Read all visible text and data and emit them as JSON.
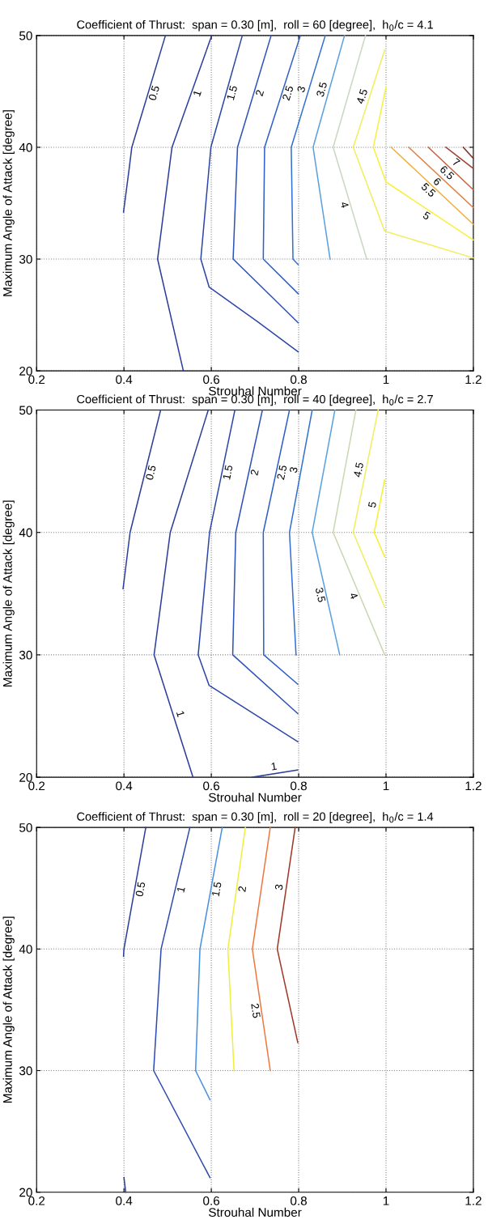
{
  "chart_data": [
    {
      "type": "line",
      "title": "Coefficient of Thrust:  span = 0.30 [m],  roll = 60 [degree],  h$_{0}$/c = 4.1",
      "xlabel": "Strouhal Number",
      "ylabel": "Maximum Angle of Attack [degree]",
      "xlim": [
        0.2,
        1.2
      ],
      "ylim": [
        20,
        50
      ],
      "xticks": [
        0.2,
        0.4,
        0.6,
        0.8,
        1,
        1.2
      ],
      "yticks": [
        20,
        30,
        40,
        50
      ],
      "grid": true,
      "marker": "none",
      "line_style": "solid",
      "series": [
        {
          "name": "0.5",
          "color": "#2b3f9a",
          "x": [
            0.399,
            0.412,
            0.418,
            0.495
          ],
          "values": [
            34.2,
            38.1,
            40,
            50
          ]
        },
        {
          "name": "1",
          "color": "#2b3f9a",
          "x": [
            0.601,
            0.51,
            0.477,
            0.536
          ],
          "values": [
            50,
            40,
            30,
            20
          ]
        },
        {
          "name": "1.5",
          "color": "#2c47a8",
          "x": [
            0.671,
            0.599,
            0.576,
            0.595,
            0.706,
            0.799
          ],
          "values": [
            50,
            40,
            30,
            27.5,
            24.4,
            21.7
          ]
        },
        {
          "name": "2",
          "color": "#2d52b8",
          "x": [
            0.737,
            0.66,
            0.65,
            0.799
          ],
          "values": [
            50,
            40,
            30,
            24.3
          ]
        },
        {
          "name": "2.5",
          "color": "#2f5fc6",
          "x": [
            0.804,
            0.722,
            0.719,
            0.799
          ],
          "values": [
            50,
            40,
            30,
            26.9
          ]
        },
        {
          "name": "3",
          "color": "#3270d4",
          "x": [
            0.861,
            0.783,
            0.787,
            0.799
          ],
          "values": [
            50,
            40,
            30,
            29.5
          ]
        },
        {
          "name": "3.5",
          "color": "#5aa0e0",
          "x": [
            0.905,
            0.833,
            0.872
          ],
          "values": [
            50,
            40,
            30
          ]
        },
        {
          "name": "4",
          "color": "#c8d8c0",
          "x": [
            0.953,
            0.879,
            0.956
          ],
          "values": [
            50,
            40,
            30
          ]
        },
        {
          "name": "4.5",
          "color": "#f0ee60",
          "x": [
            0.997,
            0.925,
            0.997,
            1.2
          ],
          "values": [
            48.7,
            40,
            32.5,
            30.1
          ]
        },
        {
          "name": "5",
          "color": "#f6f040",
          "x": [
            1.0,
            0.971,
            1.0,
            1.2
          ],
          "values": [
            45.4,
            40,
            36.9,
            31.7
          ]
        },
        {
          "name": "5.5",
          "color": "#f0b040",
          "x": [
            1.012,
            1.2
          ],
          "values": [
            40,
            33.1
          ]
        },
        {
          "name": "6",
          "color": "#e08040",
          "x": [
            1.052,
            1.2
          ],
          "values": [
            40,
            34.6
          ]
        },
        {
          "name": "6.5",
          "color": "#c86040",
          "x": [
            1.097,
            1.2
          ],
          "values": [
            40,
            36.2
          ]
        },
        {
          "name": "7",
          "color": "#a04030",
          "x": [
            1.137,
            1.2
          ],
          "values": [
            40,
            38.1
          ]
        },
        {
          "color": "#803020",
          "x": [
            1.177,
            1.2
          ],
          "values": [
            40,
            39.0
          ]
        }
      ]
    },
    {
      "type": "line",
      "title": "Coefficient of Thrust:  span = 0.30 [m],  roll = 40 [degree],  h$_{0}$/c = 2.7",
      "xlabel": "Strouhal Number",
      "ylabel": "Maximum Angle of Attack [degree]",
      "xlim": [
        0.2,
        1.2
      ],
      "ylim": [
        20,
        50
      ],
      "xticks": [
        0.2,
        0.4,
        0.6,
        0.8,
        1,
        1.2
      ],
      "yticks": [
        20,
        30,
        40,
        50
      ],
      "grid": true,
      "marker": "none",
      "line_style": "solid",
      "series": [
        {
          "name": "0.5",
          "color": "#2b3f9a",
          "x": [
            0.398,
            0.414,
            0.484
          ],
          "values": [
            35.4,
            40,
            50
          ]
        },
        {
          "name": "1",
          "color": "#2b3f9a",
          "x": [
            0.593,
            0.506,
            0.469,
            0.558
          ],
          "values": [
            50,
            40,
            30,
            20
          ]
        },
        {
          "name": "1.5",
          "color": "#2c47a8",
          "x": [
            0.654,
            0.596,
            0.57,
            0.595,
            0.798
          ],
          "values": [
            50,
            40,
            30,
            27.5,
            22.9
          ]
        },
        {
          "name": "2",
          "color": "#2d52b8",
          "x": [
            0.717,
            0.656,
            0.649,
            0.798
          ],
          "values": [
            50,
            40,
            30,
            25.2
          ]
        },
        {
          "name": "2.5",
          "color": "#2f5fc6",
          "x": [
            0.779,
            0.719,
            0.72,
            0.798
          ],
          "values": [
            50,
            40,
            30,
            27.6
          ]
        },
        {
          "name": "3",
          "color": "#3270d4",
          "x": [
            0.831,
            0.779,
            0.794
          ],
          "values": [
            50,
            40,
            30
          ]
        },
        {
          "name": "3.5",
          "color": "#5aa0e0",
          "x": [
            0.883,
            0.831,
            0.894
          ],
          "values": [
            50,
            40,
            30
          ]
        },
        {
          "name": "4",
          "color": "#c8d8b0",
          "x": [
            0.931,
            0.879,
            0.997
          ],
          "values": [
            50,
            40,
            30
          ]
        },
        {
          "name": "4.5",
          "color": "#f0ee60",
          "x": [
            0.982,
            0.925,
            0.997
          ],
          "values": [
            50,
            40,
            33.9
          ]
        },
        {
          "name": "5",
          "color": "#f6f030",
          "x": [
            0.997,
            0.973,
            0.997
          ],
          "values": [
            44.3,
            40,
            38.0
          ]
        },
        {
          "name": "1",
          "color": "#2b3f9a",
          "x": [
            0.694,
            0.798
          ],
          "values": [
            20,
            20.6
          ]
        }
      ]
    },
    {
      "type": "line",
      "title": "Coefficient of Thrust:  span = 0.30 [m],  roll = 20 [degree],  h$_{0}$/c = 1.4",
      "xlabel": "Strouhal Number",
      "ylabel": "Maximum Angle of Attack [degree]",
      "xlim": [
        0.2,
        1.2
      ],
      "ylim": [
        20,
        50
      ],
      "xticks": [
        0.2,
        0.4,
        0.6,
        0.8,
        1,
        1.2
      ],
      "yticks": [
        20,
        30,
        40,
        50
      ],
      "grid": true,
      "marker": "none",
      "line_style": "solid",
      "series": [
        {
          "name": "0.5",
          "color": "#2b3f9a",
          "x": [
            0.399,
            0.4,
            0.45
          ],
          "values": [
            39.4,
            40,
            50
          ]
        },
        {
          "color": "#2b3f9a",
          "x": [
            0.4,
            0.404
          ],
          "values": [
            21.2,
            20
          ]
        },
        {
          "name": "1",
          "color": "#2d4cb0",
          "x": [
            0.551,
            0.485,
            0.468,
            0.597
          ],
          "values": [
            50,
            40,
            30,
            21.2
          ]
        },
        {
          "name": "1.5",
          "color": "#4a90e0",
          "x": [
            0.625,
            0.574,
            0.564,
            0.597
          ],
          "values": [
            50,
            40,
            30,
            27.6
          ]
        },
        {
          "name": "2",
          "color": "#f0ee40",
          "x": [
            0.678,
            0.638,
            0.652
          ],
          "values": [
            50,
            40,
            30
          ]
        },
        {
          "name": "2.5",
          "color": "#f07840",
          "x": [
            0.735,
            0.694,
            0.735
          ],
          "values": [
            50,
            40,
            30
          ]
        },
        {
          "name": "3",
          "color": "#a03828",
          "x": [
            0.792,
            0.751,
            0.798
          ],
          "values": [
            50,
            40,
            32.3
          ]
        }
      ]
    }
  ]
}
